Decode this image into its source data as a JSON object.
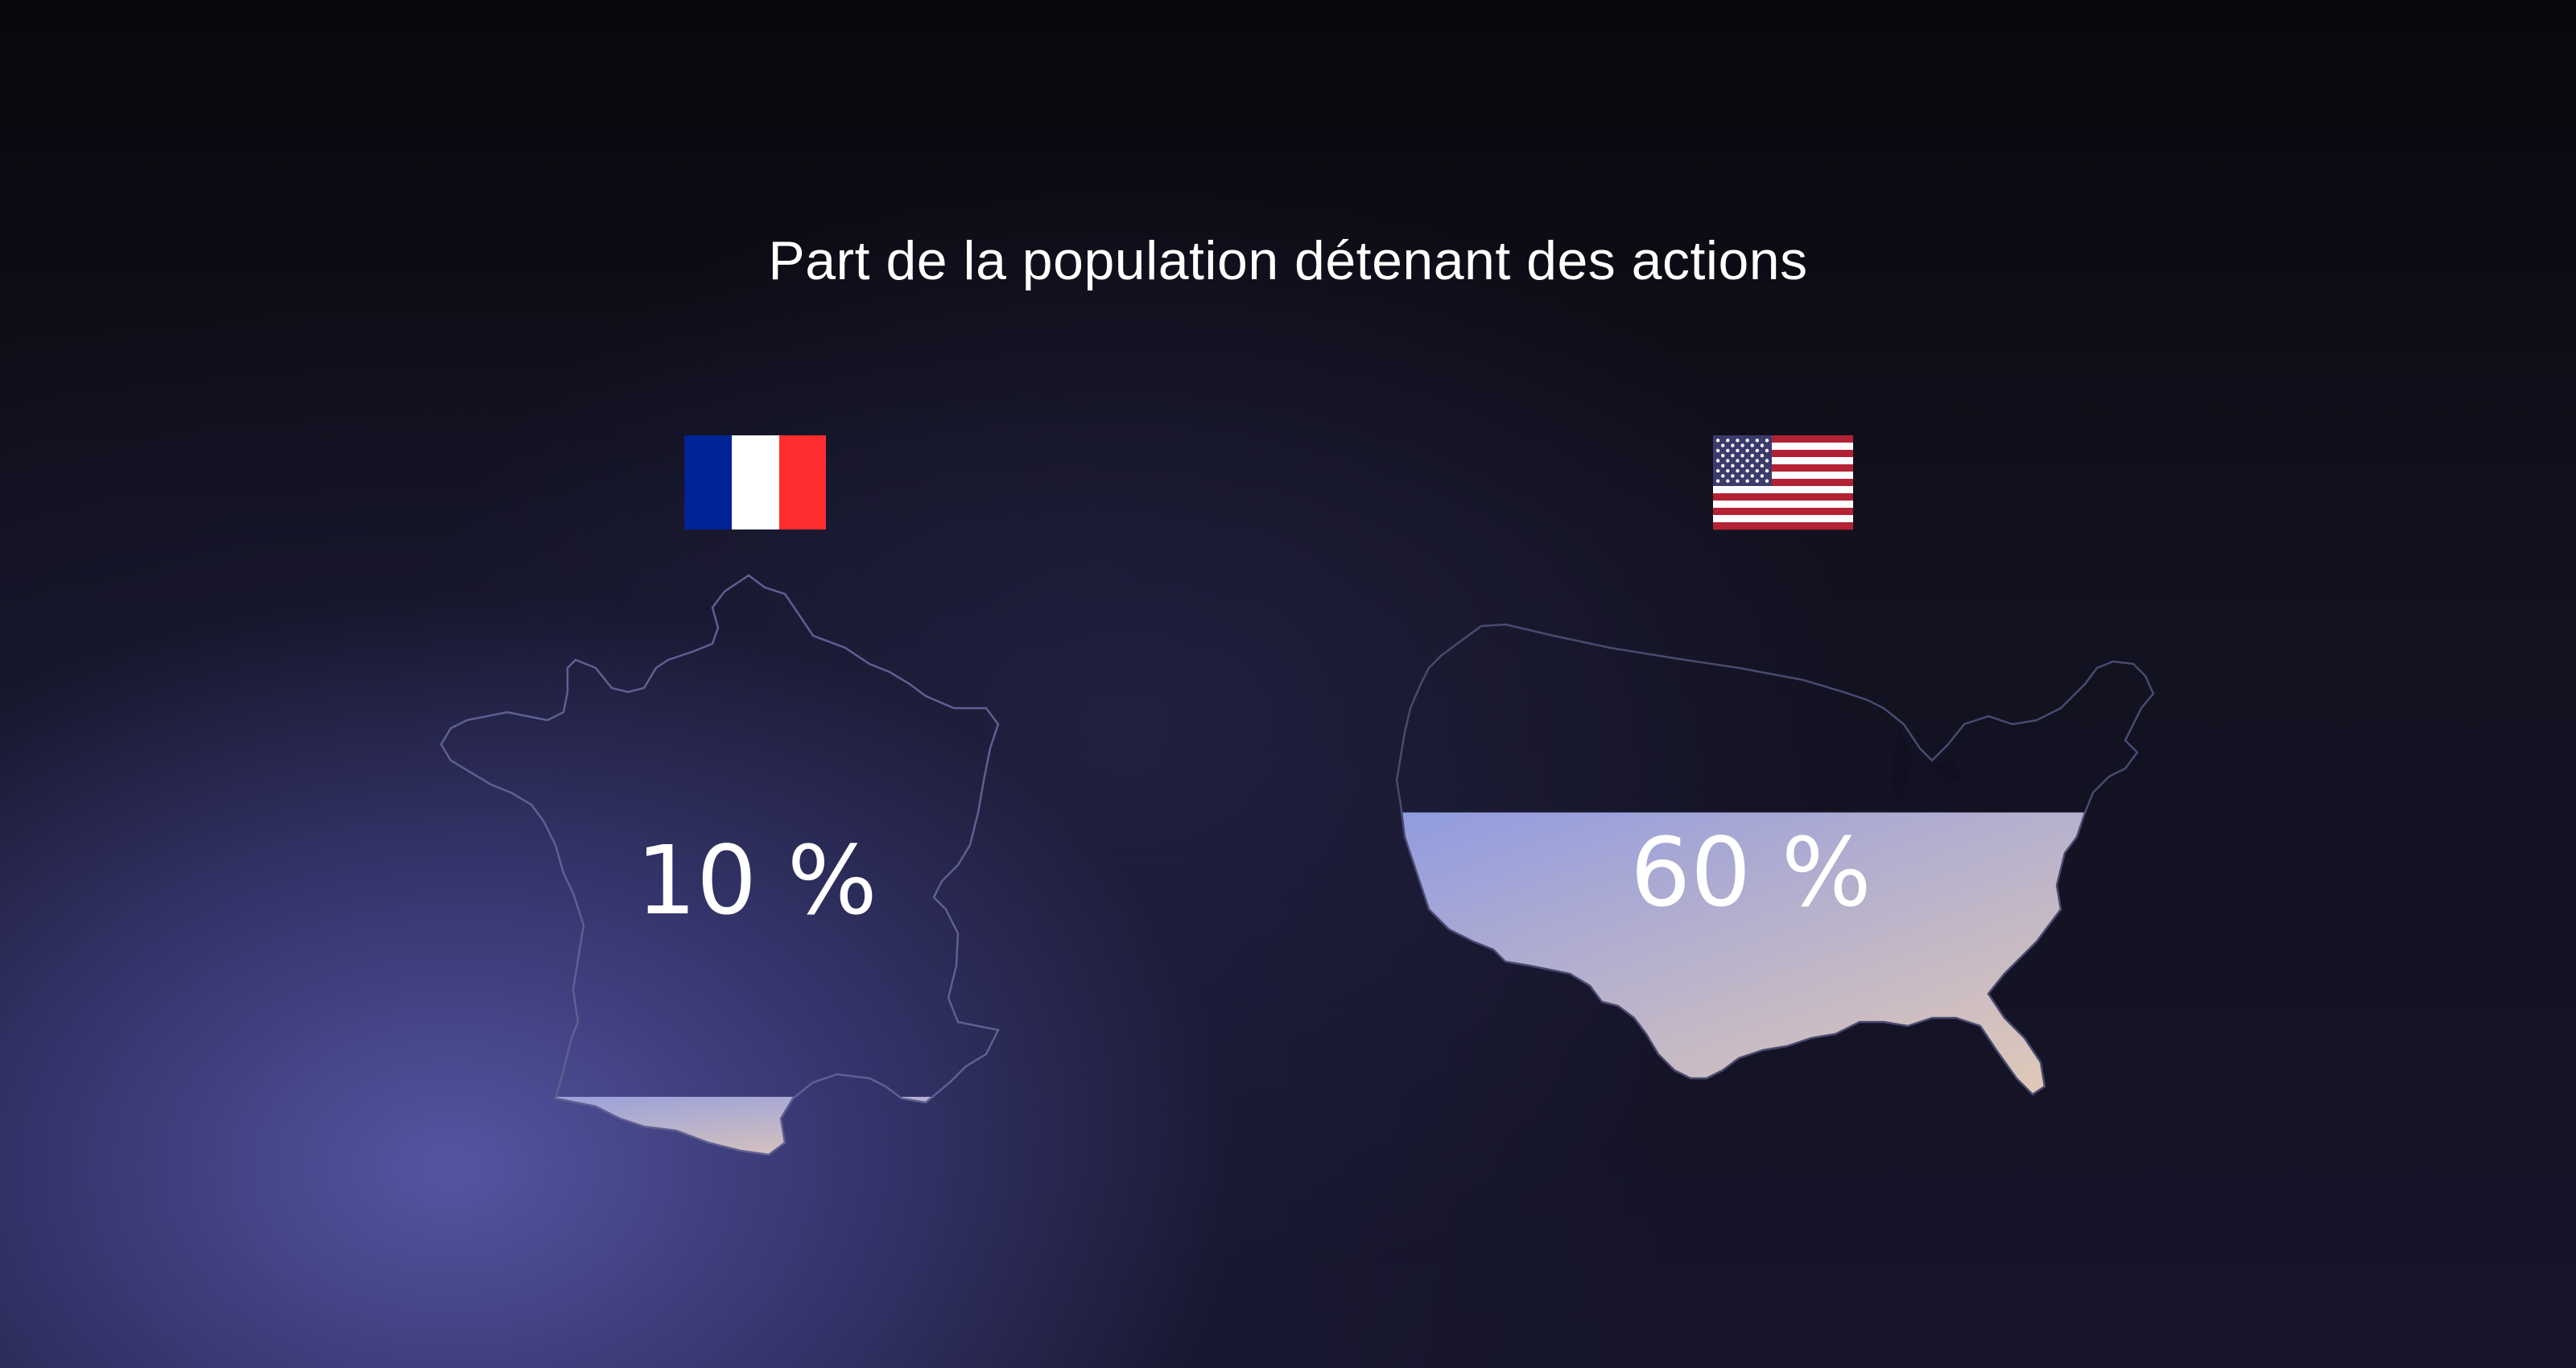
{
  "chart_data": {
    "type": "bar",
    "title": "Part de la population détenant des actions",
    "categories": [
      "France",
      "États-Unis"
    ],
    "values": [
      10,
      60
    ],
    "labels": [
      "10 %",
      "60 %"
    ],
    "ylim": [
      0,
      100
    ],
    "fill_gradient": [
      "#8f9ae0",
      "#e8cdb4"
    ],
    "outline_color": "#5f5f92"
  },
  "flags": {
    "france": {
      "icon": "france-flag-icon",
      "colors": [
        "#002395",
        "#ffffff",
        "#ff2d2d"
      ]
    },
    "usa": {
      "icon": "usa-flag-icon",
      "colors": [
        "#b22234",
        "#ffffff",
        "#3c3b6e"
      ]
    }
  }
}
